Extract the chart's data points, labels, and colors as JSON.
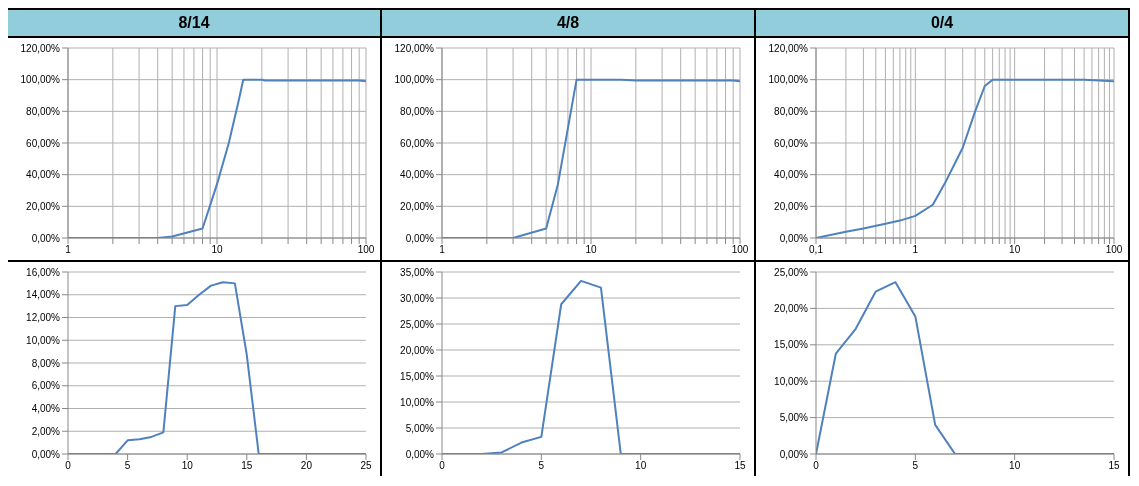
{
  "chart_data": [
    {
      "type": "line",
      "title": "8/14",
      "log": "x",
      "grid": true,
      "color": "#4f81bd",
      "marker": "none",
      "x": [
        1,
        2,
        3,
        4,
        5,
        8,
        10,
        12,
        14,
        15,
        20,
        21,
        90,
        100
      ],
      "values": [
        0,
        0,
        0,
        0,
        1,
        6,
        34,
        60,
        87,
        100,
        100,
        99.5,
        99.5,
        99
      ],
      "xlim": [
        1,
        100
      ],
      "xticks": [
        1,
        {
          "value": 2,
          "label": null
        },
        {
          "value": 3,
          "label": null
        },
        {
          "value": 4,
          "label": null
        },
        {
          "value": 5,
          "label": null
        },
        {
          "value": 6,
          "label": null
        },
        {
          "value": 7,
          "label": null
        },
        {
          "value": 8,
          "label": null
        },
        {
          "value": 9,
          "label": null
        },
        10,
        {
          "value": 20,
          "label": null
        },
        {
          "value": 30,
          "label": null
        },
        {
          "value": 40,
          "label": null
        },
        {
          "value": 50,
          "label": null
        },
        {
          "value": 60,
          "label": null
        },
        {
          "value": 70,
          "label": null
        },
        {
          "value": 80,
          "label": null
        },
        {
          "value": 90,
          "label": null
        },
        100
      ],
      "ylim": [
        0,
        120
      ],
      "yticks": [
        {
          "value": 0,
          "label": "0,00%"
        },
        {
          "value": 20,
          "label": "20,00%"
        },
        {
          "value": 40,
          "label": "40,00%"
        },
        {
          "value": 60,
          "label": "60,00%"
        },
        {
          "value": 80,
          "label": "80,00%"
        },
        {
          "value": 100,
          "label": "100,00%"
        },
        {
          "value": 120,
          "label": "120,00%"
        }
      ]
    },
    {
      "type": "line",
      "title": "4/8",
      "log": "x",
      "grid": true,
      "color": "#4f81bd",
      "marker": "none",
      "x": [
        1,
        2,
        3,
        5,
        6,
        8,
        10,
        16,
        20,
        90,
        100
      ],
      "values": [
        0,
        0,
        0,
        6,
        34,
        100,
        100,
        100,
        99.5,
        99.5,
        99
      ],
      "xlim": [
        1,
        100
      ],
      "xticks": [
        1,
        {
          "value": 2,
          "label": null
        },
        {
          "value": 3,
          "label": null
        },
        {
          "value": 4,
          "label": null
        },
        {
          "value": 5,
          "label": null
        },
        {
          "value": 6,
          "label": null
        },
        {
          "value": 7,
          "label": null
        },
        {
          "value": 8,
          "label": null
        },
        {
          "value": 9,
          "label": null
        },
        10,
        {
          "value": 20,
          "label": null
        },
        {
          "value": 30,
          "label": null
        },
        {
          "value": 40,
          "label": null
        },
        {
          "value": 50,
          "label": null
        },
        {
          "value": 60,
          "label": null
        },
        {
          "value": 70,
          "label": null
        },
        {
          "value": 80,
          "label": null
        },
        {
          "value": 90,
          "label": null
        },
        100
      ],
      "ylim": [
        0,
        120
      ],
      "yticks": [
        {
          "value": 0,
          "label": "0,00%"
        },
        {
          "value": 20,
          "label": "20,00%"
        },
        {
          "value": 40,
          "label": "40,00%"
        },
        {
          "value": 60,
          "label": "60,00%"
        },
        {
          "value": 80,
          "label": "80,00%"
        },
        {
          "value": 100,
          "label": "100,00%"
        },
        {
          "value": 120,
          "label": "120,00%"
        }
      ]
    },
    {
      "type": "line",
      "title": "0/4",
      "log": "x",
      "grid": true,
      "color": "#4f81bd",
      "marker": "none",
      "x": [
        0.1,
        0.2,
        0.3,
        0.5,
        0.7,
        1,
        1.5,
        2,
        3,
        4,
        5,
        6,
        10,
        50,
        100
      ],
      "values": [
        0,
        4,
        6,
        9,
        11,
        14,
        21,
        35,
        57,
        80,
        96,
        100,
        100,
        100,
        99
      ],
      "xlim": [
        0.1,
        100
      ],
      "xticks": [
        {
          "value": 0.1,
          "label": "0,1"
        },
        {
          "value": 0.2,
          "label": null
        },
        {
          "value": 0.3,
          "label": null
        },
        {
          "value": 0.4,
          "label": null
        },
        {
          "value": 0.5,
          "label": null
        },
        {
          "value": 0.6,
          "label": null
        },
        {
          "value": 0.7,
          "label": null
        },
        {
          "value": 0.8,
          "label": null
        },
        {
          "value": 0.9,
          "label": null
        },
        1,
        {
          "value": 2,
          "label": null
        },
        {
          "value": 3,
          "label": null
        },
        {
          "value": 4,
          "label": null
        },
        {
          "value": 5,
          "label": null
        },
        {
          "value": 6,
          "label": null
        },
        {
          "value": 7,
          "label": null
        },
        {
          "value": 8,
          "label": null
        },
        {
          "value": 9,
          "label": null
        },
        10,
        {
          "value": 20,
          "label": null
        },
        {
          "value": 30,
          "label": null
        },
        {
          "value": 40,
          "label": null
        },
        {
          "value": 50,
          "label": null
        },
        {
          "value": 60,
          "label": null
        },
        {
          "value": 70,
          "label": null
        },
        {
          "value": 80,
          "label": null
        },
        {
          "value": 90,
          "label": null
        },
        100
      ],
      "ylim": [
        0,
        120
      ],
      "yticks": [
        {
          "value": 0,
          "label": "0,00%"
        },
        {
          "value": 20,
          "label": "20,00%"
        },
        {
          "value": 40,
          "label": "40,00%"
        },
        {
          "value": 60,
          "label": "60,00%"
        },
        {
          "value": 80,
          "label": "80,00%"
        },
        {
          "value": 100,
          "label": "100,00%"
        },
        {
          "value": 120,
          "label": "120,00%"
        }
      ]
    },
    {
      "type": "line",
      "grid": "y",
      "color": "#4f81bd",
      "marker": "none",
      "x": [
        0,
        1,
        2,
        3,
        4,
        5,
        6,
        7,
        8,
        9,
        10,
        11,
        12,
        13,
        14,
        15,
        16,
        17,
        18,
        19,
        20,
        21,
        22,
        23,
        24,
        25
      ],
      "values": [
        0,
        0,
        0,
        0,
        0,
        1.2,
        1.3,
        1.5,
        1.9,
        13.0,
        13.1,
        14.0,
        14.8,
        15.1,
        15.0,
        8.7,
        0,
        0,
        0,
        0,
        0,
        0,
        0,
        0,
        0,
        0
      ],
      "xlim": [
        0,
        25
      ],
      "xticks": [
        0,
        5,
        10,
        15,
        20,
        25
      ],
      "ylim": [
        0,
        16
      ],
      "yticks": [
        {
          "value": 0,
          "label": "0,00%"
        },
        {
          "value": 2,
          "label": "2,00%"
        },
        {
          "value": 4,
          "label": "4,00%"
        },
        {
          "value": 6,
          "label": "6,00%"
        },
        {
          "value": 8,
          "label": "8,00%"
        },
        {
          "value": 10,
          "label": "10,00%"
        },
        {
          "value": 12,
          "label": "12,00%"
        },
        {
          "value": 14,
          "label": "14,00%"
        },
        {
          "value": 16,
          "label": "16,00%"
        }
      ]
    },
    {
      "type": "line",
      "grid": "y",
      "color": "#4f81bd",
      "marker": "none",
      "x": [
        0,
        1,
        2,
        3,
        4,
        5,
        6,
        7,
        8,
        9,
        10,
        11,
        12,
        13,
        14,
        15
      ],
      "values": [
        0,
        0,
        0,
        0.3,
        2.2,
        3.3,
        28.8,
        33.3,
        32.0,
        0,
        0,
        0,
        0,
        0,
        0,
        0
      ],
      "xlim": [
        0,
        15
      ],
      "xticks": [
        0,
        5,
        10,
        15
      ],
      "ylim": [
        0,
        35
      ],
      "yticks": [
        {
          "value": 0,
          "label": "0,00%"
        },
        {
          "value": 5,
          "label": "5,00%"
        },
        {
          "value": 10,
          "label": "10,00%"
        },
        {
          "value": 15,
          "label": "15,00%"
        },
        {
          "value": 20,
          "label": "20,00%"
        },
        {
          "value": 25,
          "label": "25,00%"
        },
        {
          "value": 30,
          "label": "30,00%"
        },
        {
          "value": 35,
          "label": "35,00%"
        }
      ]
    },
    {
      "type": "line",
      "grid": "y",
      "color": "#4f81bd",
      "marker": "none",
      "x": [
        0,
        1,
        2,
        3,
        4,
        5,
        6,
        7,
        8,
        9,
        10,
        11,
        12,
        13,
        14,
        15
      ],
      "values": [
        0,
        13.8,
        17.2,
        22.3,
        23.6,
        18.9,
        4.0,
        0,
        0,
        0,
        0,
        0,
        0,
        0,
        0,
        0
      ],
      "xlim": [
        0,
        15
      ],
      "xticks": [
        0,
        5,
        10,
        15
      ],
      "ylim": [
        0,
        25
      ],
      "yticks": [
        {
          "value": 0,
          "label": "0,00%"
        },
        {
          "value": 5,
          "label": "5,00%"
        },
        {
          "value": 10,
          "label": "10,00%"
        },
        {
          "value": 15,
          "label": "15,00%"
        },
        {
          "value": 20,
          "label": "20,00%"
        },
        {
          "value": 25,
          "label": "25,00%"
        }
      ]
    }
  ]
}
